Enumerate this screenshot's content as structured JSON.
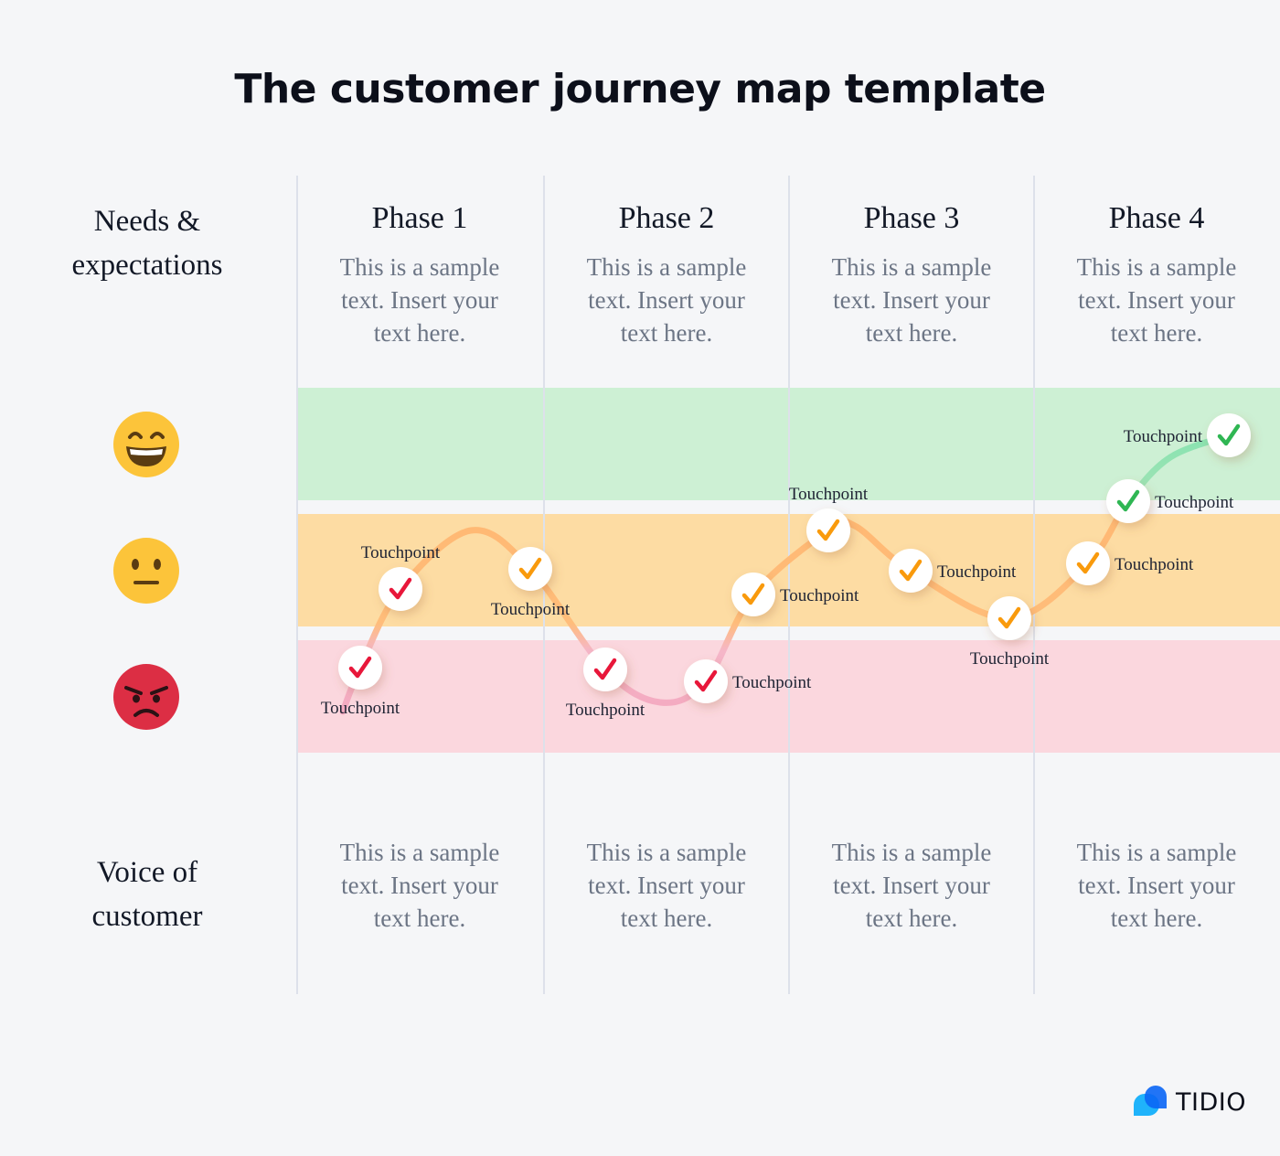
{
  "title": "The customer journey map template",
  "rows": {
    "needs_label": [
      "Needs &",
      "expectations"
    ],
    "voice_label": [
      "Voice of",
      "customer"
    ]
  },
  "phases": [
    {
      "name": "Phase 1",
      "needs": [
        "This is a sample",
        "text. Insert your",
        "text here."
      ],
      "voice": [
        "This is a sample",
        "text. Insert your",
        "text here."
      ]
    },
    {
      "name": "Phase 2",
      "needs": [
        "This is a sample",
        "text. Insert your",
        "text here."
      ],
      "voice": [
        "This is a sample",
        "text. Insert your",
        "text here."
      ]
    },
    {
      "name": "Phase 3",
      "needs": [
        "This is a sample",
        "text. Insert your",
        "text here."
      ],
      "voice": [
        "This is a sample",
        "text. Insert your",
        "text here."
      ]
    },
    {
      "name": "Phase 4",
      "needs": [
        "This is a sample",
        "text. Insert your",
        "text here."
      ],
      "voice": [
        "This is a sample",
        "text. Insert your",
        "text here."
      ]
    }
  ],
  "emotions": [
    {
      "mood": "happy",
      "icon": "grinning-face-icon",
      "band_color": "#cdf0d4"
    },
    {
      "mood": "neutral",
      "icon": "neutral-face-icon",
      "band_color": "#fddca3"
    },
    {
      "mood": "angry",
      "icon": "angry-face-icon",
      "band_color": "#fbd7de"
    }
  ],
  "touchpoints": [
    {
      "label": "Touchpoint",
      "mood": "angry",
      "phase": 1
    },
    {
      "label": "Touchpoint",
      "mood": "angry",
      "phase": 1
    },
    {
      "label": "Touchpoint",
      "mood": "neutral",
      "phase": 1
    },
    {
      "label": "Touchpoint",
      "mood": "angry",
      "phase": 2
    },
    {
      "label": "Touchpoint",
      "mood": "angry",
      "phase": 2
    },
    {
      "label": "Touchpoint",
      "mood": "neutral",
      "phase": 2
    },
    {
      "label": "Touchpoint",
      "mood": "neutral",
      "phase": 3
    },
    {
      "label": "Touchpoint",
      "mood": "neutral",
      "phase": 3
    },
    {
      "label": "Touchpoint",
      "mood": "neutral",
      "phase": 3
    },
    {
      "label": "Touchpoint",
      "mood": "neutral",
      "phase": 4
    },
    {
      "label": "Touchpoint",
      "mood": "happy",
      "phase": 4
    },
    {
      "label": "Touchpoint",
      "mood": "happy",
      "phase": 4
    }
  ],
  "check_colors": {
    "angry": "#e8173a",
    "neutral": "#f99a0c",
    "happy": "#2fb653"
  },
  "brand": {
    "name": "TIDIO",
    "icon": "tidio-chat-bubble-logo"
  }
}
